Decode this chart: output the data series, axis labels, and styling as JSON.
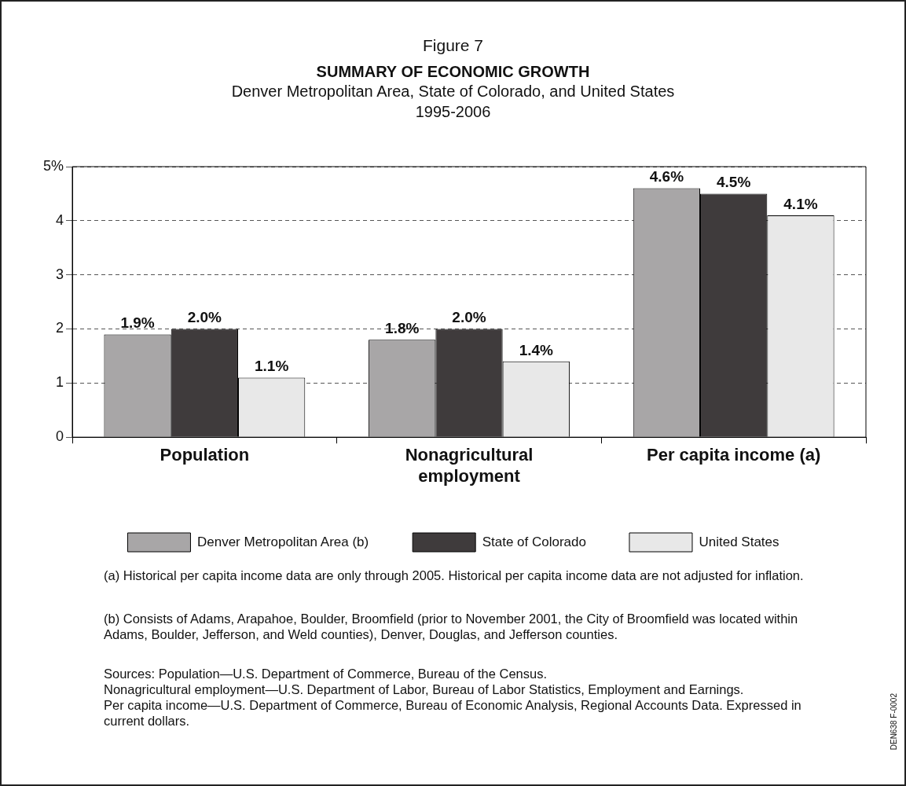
{
  "chart_data": {
    "type": "bar",
    "title": "SUMMARY OF ECONOMIC GROWTH",
    "subtitle": "Denver Metropolitan Area, State of Colorado, and United States\n1995-2006",
    "categories": [
      "Population",
      "Nonagricultural employment",
      "Per capita income (a)"
    ],
    "series": [
      {
        "name": "Denver Metropolitan Area (b)",
        "color": "#a8a6a7",
        "values": [
          1.9,
          1.8,
          4.6
        ],
        "value_labels": [
          "1.9%",
          "1.8%",
          "4.6%"
        ]
      },
      {
        "name": "State of Colorado",
        "color": "#3f3b3c",
        "values": [
          2.0,
          2.0,
          4.5
        ],
        "value_labels": [
          "2.0%",
          "2.0%",
          "4.5%"
        ]
      },
      {
        "name": "United States",
        "color": "#e8e8e8",
        "values": [
          1.1,
          1.4,
          4.1
        ],
        "value_labels": [
          "1.1%",
          "1.4%",
          "4.1%"
        ]
      }
    ],
    "ylim": [
      0,
      5
    ],
    "yticks": [
      0,
      1,
      2,
      3,
      4,
      {
        "value": 5,
        "label": "5%"
      }
    ],
    "grid": "y",
    "line_style": "dashed",
    "legend": "bottom",
    "annotations": [
      "Figure 7",
      "(a) Historical per capita income data are only through 2005. Historical per capita income data are not adjusted for inflation.",
      "(b) Consists of Adams, Arapahoe, Boulder, Broomfield (prior to November 2001, the City of Broomfield was located within Adams, Boulder, Jefferson, and Weld counties), Denver, Douglas, and Jefferson counties.",
      "Sources: Population—U.S. Department of Commerce, Bureau of the Census.\nNonagricultural employment—U.S. Department of Labor, Bureau of Labor Statistics, Employment and Earnings.\nPer capita income—U.S. Department of Commerce, Bureau of Economic Analysis, Regional Accounts Data. Expressed in current dollars.",
      "DEN638 F-0002"
    ]
  }
}
